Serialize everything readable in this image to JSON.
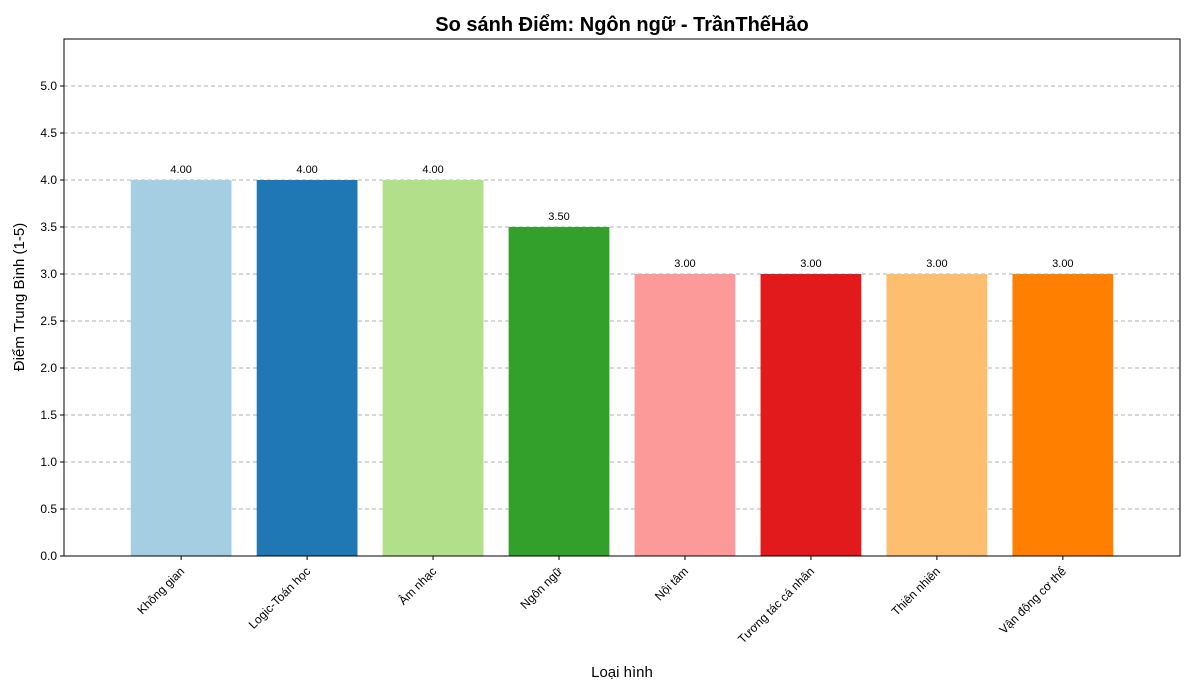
{
  "chart_data": {
    "type": "bar",
    "title": "So sánh Điểm: Ngôn ngữ - TrầnThếHảo",
    "xlabel": "Loại hình",
    "ylabel": "Điểm Trung Bình (1-5)",
    "ylim": [
      0,
      5.5
    ],
    "yticks": [
      "0.0",
      "0.5",
      "1.0",
      "1.5",
      "2.0",
      "2.5",
      "3.0",
      "3.5",
      "4.0",
      "4.5",
      "5.0"
    ],
    "grid": "y-dashed",
    "categories": [
      "Không gian",
      "Logic-Toán học",
      "Âm nhạc",
      "Ngôn ngữ",
      "Nội tâm",
      "Tương tác cá nhân",
      "Thiên nhiên",
      "Vận động cơ thể"
    ],
    "values": [
      4.0,
      4.0,
      4.0,
      3.5,
      3.0,
      3.0,
      3.0,
      3.0
    ],
    "value_labels": [
      "4.00",
      "4.00",
      "4.00",
      "3.50",
      "3.00",
      "3.00",
      "3.00",
      "3.00"
    ],
    "colors": [
      "#a6cee3",
      "#1f78b4",
      "#b2df8a",
      "#33a02c",
      "#fb9a99",
      "#e31a1c",
      "#fdbf6f",
      "#ff7f00"
    ]
  }
}
